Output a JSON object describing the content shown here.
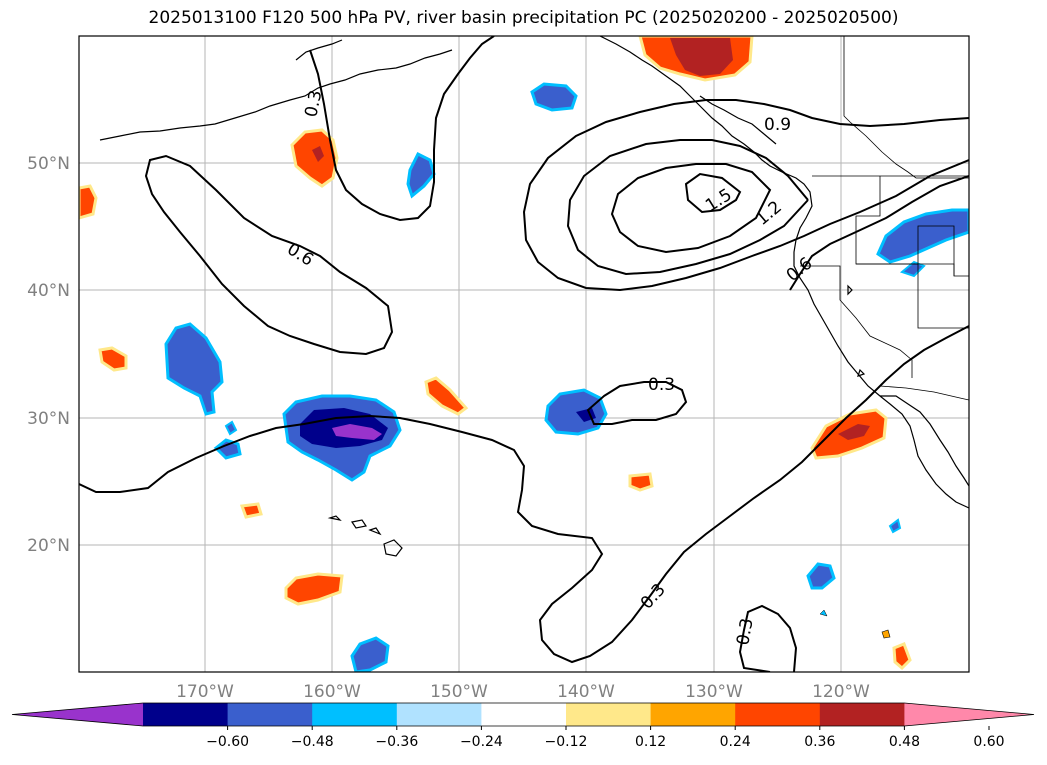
{
  "title": "2025013100 F120 500 hPa PV, river basin precipitation PC (2025020200 - 2025020500)",
  "map": {
    "lon_range": [
      -180,
      -110
    ],
    "lat_range": [
      10,
      60
    ],
    "lat_labels": [
      "50°N",
      "40°N",
      "30°N",
      "20°N"
    ],
    "lon_labels": [
      "170°W",
      "160°W",
      "150°W",
      "140°W",
      "130°W",
      "120°W"
    ],
    "gridlines": true,
    "pv_contour_labels": [
      "0.3",
      "0.6",
      "0.9",
      "1.2",
      "1.5",
      "0.6",
      "0.3",
      "0.3",
      "0.3"
    ]
  },
  "colorbar": {
    "ticks": [
      "−0.60",
      "−0.48",
      "−0.36",
      "−0.24",
      "−0.12",
      "0.12",
      "0.24",
      "0.36",
      "0.48",
      "0.60"
    ],
    "colors": [
      "#9933cc",
      "#00008b",
      "#3a5fcd",
      "#00bfff",
      "#b0e2ff",
      "#ffffff",
      "#ffe88a",
      "#ffa500",
      "#ff4500",
      "#b22222",
      "#ff88aa"
    ],
    "extend": "both"
  }
}
